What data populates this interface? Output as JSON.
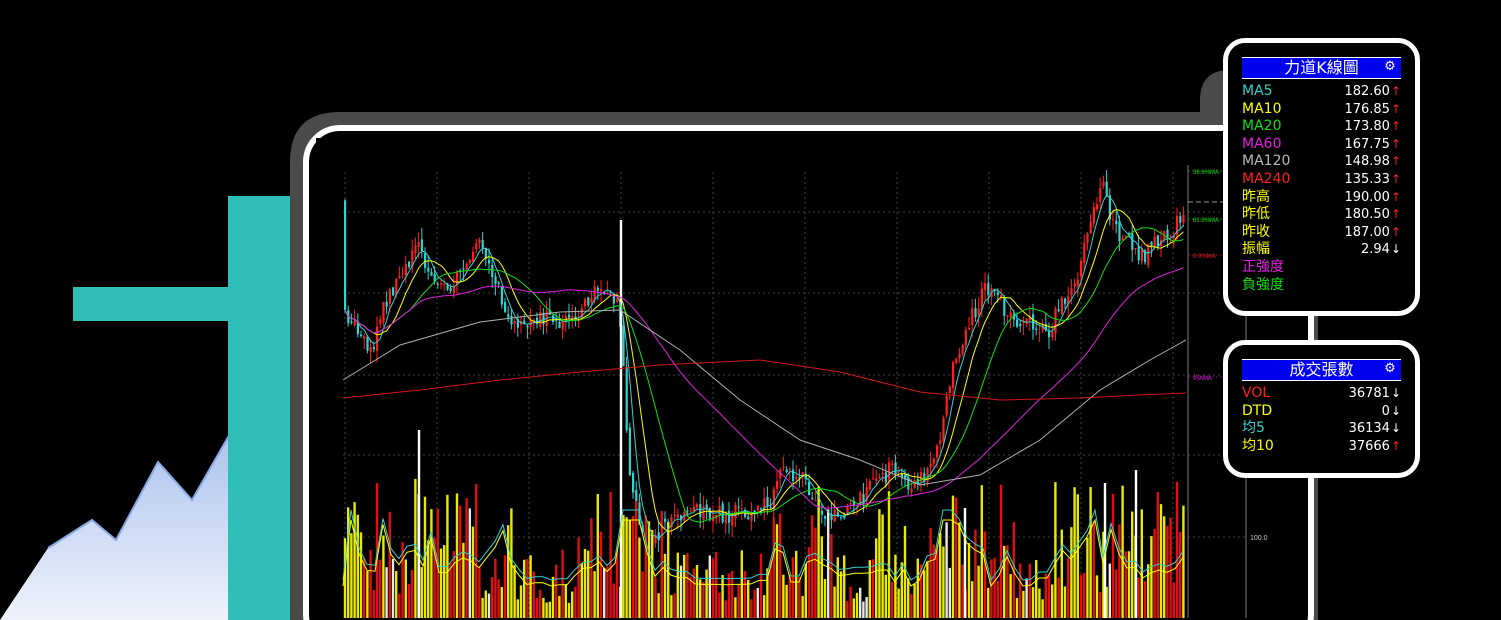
{
  "colors": {
    "teal": "#2fbfb8",
    "area_top": "#9bb7ea",
    "area_bottom": "#eef2fb",
    "up_arrow": "#ff2020",
    "down_arrow": "#ffffff",
    "header_bg": "#0000f0",
    "ma5": "#35d0d0",
    "ma10": "#ffff00",
    "ma20": "#10e010",
    "ma60": "#e020e0",
    "ma120": "#b0b0b0",
    "ma240": "#ff2020"
  },
  "kline_panel": {
    "title": "力道K線圖",
    "settings_icon": "gear-icon",
    "rows": [
      {
        "label": "MA5",
        "value": "182.60",
        "arrow": "↑",
        "color": "#35d0d0",
        "arrow_color": "#ff2020"
      },
      {
        "label": "MA10",
        "value": "176.85",
        "arrow": "↑",
        "color": "#ffff00",
        "arrow_color": "#ff2020"
      },
      {
        "label": "MA20",
        "value": "173.80",
        "arrow": "↑",
        "color": "#10e010",
        "arrow_color": "#ff2020"
      },
      {
        "label": "MA60",
        "value": "167.75",
        "arrow": "↑",
        "color": "#e020e0",
        "arrow_color": "#ff2020"
      },
      {
        "label": "MA120",
        "value": "148.98",
        "arrow": "↑",
        "color": "#b8b8b8",
        "arrow_color": "#ff2020"
      },
      {
        "label": "MA240",
        "value": "135.33",
        "arrow": "↑",
        "color": "#ff2020",
        "arrow_color": "#ff2020"
      },
      {
        "label": "昨高",
        "value": "190.00",
        "arrow": "↑",
        "color": "#ffff00",
        "arrow_color": "#ff2020"
      },
      {
        "label": "昨低",
        "value": "180.50",
        "arrow": "↑",
        "color": "#ffff00",
        "arrow_color": "#ff2020"
      },
      {
        "label": "昨收",
        "value": "187.00",
        "arrow": "↑",
        "color": "#ffff00",
        "arrow_color": "#ff2020"
      },
      {
        "label": "振幅",
        "value": "2.94",
        "arrow": "↓",
        "color": "#ffff00",
        "arrow_color": "#ffffff"
      },
      {
        "label": "正強度",
        "value": "",
        "arrow": "",
        "color": "#e020e0",
        "arrow_color": "#ff2020"
      },
      {
        "label": "負強度",
        "value": "",
        "arrow": "",
        "color": "#10e010",
        "arrow_color": "#ff2020"
      }
    ]
  },
  "volume_panel": {
    "title": "成交張數",
    "settings_icon": "gear-icon",
    "rows": [
      {
        "label": "VOL",
        "value": "36781",
        "arrow": "↓",
        "color": "#ff2020",
        "arrow_color": "#ffffff"
      },
      {
        "label": "DTD",
        "value": "0",
        "arrow": "↓",
        "color": "#ffff00",
        "arrow_color": "#ffffff"
      },
      {
        "label": "均5",
        "value": "36134",
        "arrow": "↓",
        "color": "#35d0d0",
        "arrow_color": "#ffffff"
      },
      {
        "label": "均10",
        "value": "37666",
        "arrow": "↑",
        "color": "#ffff00",
        "arrow_color": "#ff2020"
      }
    ]
  },
  "chart_axis": {
    "volume_tick": "100.0",
    "right_tags": [
      "38.6%MA",
      "61.8%MA",
      "0.0%MA",
      "均AMA"
    ]
  }
}
